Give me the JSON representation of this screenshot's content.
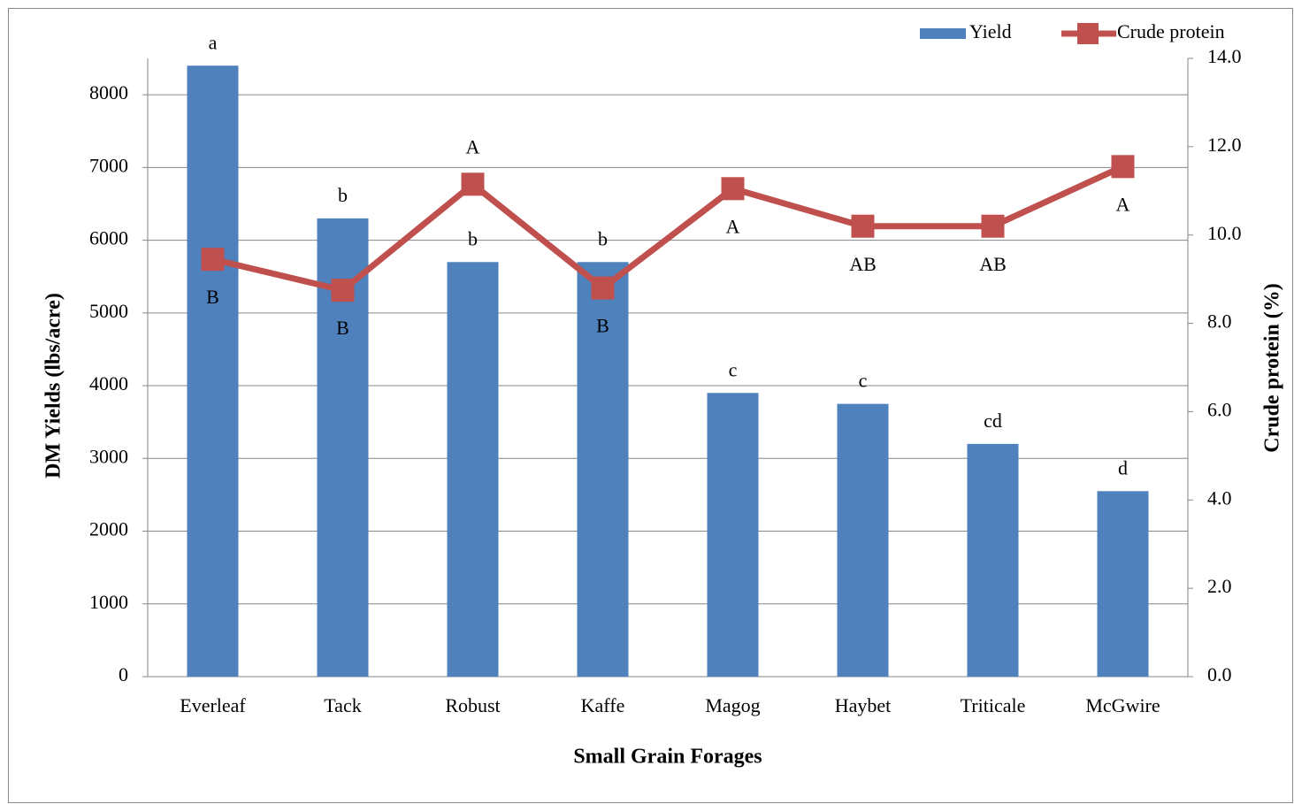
{
  "chart_data": {
    "type": "bar_line",
    "x_label": "Small Grain Forages",
    "y_label": "DM Yields (lbs/acre)",
    "y2_label": "Crude protein (%)",
    "categories": [
      "Everleaf",
      "Tack",
      "Robust",
      "Kaffe",
      "Magog",
      "Haybet",
      "Triticale",
      "McGwire"
    ],
    "series": [
      {
        "name": "Yield",
        "type": "bar",
        "color": "#4f81bd",
        "values": [
          8400,
          6300,
          5700,
          5700,
          3900,
          3750,
          3200,
          2550
        ],
        "letters": [
          "a",
          "b",
          "b",
          "b",
          "c",
          "c",
          "cd",
          "d"
        ]
      },
      {
        "name": "Crude protein",
        "type": "line",
        "axis": "y2",
        "color": "#c0504d",
        "values": [
          9.45,
          8.75,
          11.15,
          8.8,
          11.05,
          10.2,
          10.2,
          11.55
        ],
        "letters": [
          "B",
          "B",
          "A",
          "B",
          "A",
          "AB",
          "AB",
          "A"
        ]
      }
    ],
    "ylim": [
      0,
      8500
    ],
    "yticks": [
      0,
      1000,
      2000,
      3000,
      4000,
      5000,
      6000,
      7000,
      8000
    ],
    "y2lim": [
      0,
      14
    ],
    "y2ticks": [
      {
        "value": 0,
        "label": "0.0"
      },
      {
        "value": 2,
        "label": "2.0"
      },
      {
        "value": 4,
        "label": "4.0"
      },
      {
        "value": 6,
        "label": "6.0"
      },
      {
        "value": 8,
        "label": "8.0"
      },
      {
        "value": 10,
        "label": "10.0"
      },
      {
        "value": 12,
        "label": "12.0"
      },
      {
        "value": 14,
        "label": "14.0"
      }
    ],
    "grid": true,
    "legend": "top-right"
  }
}
